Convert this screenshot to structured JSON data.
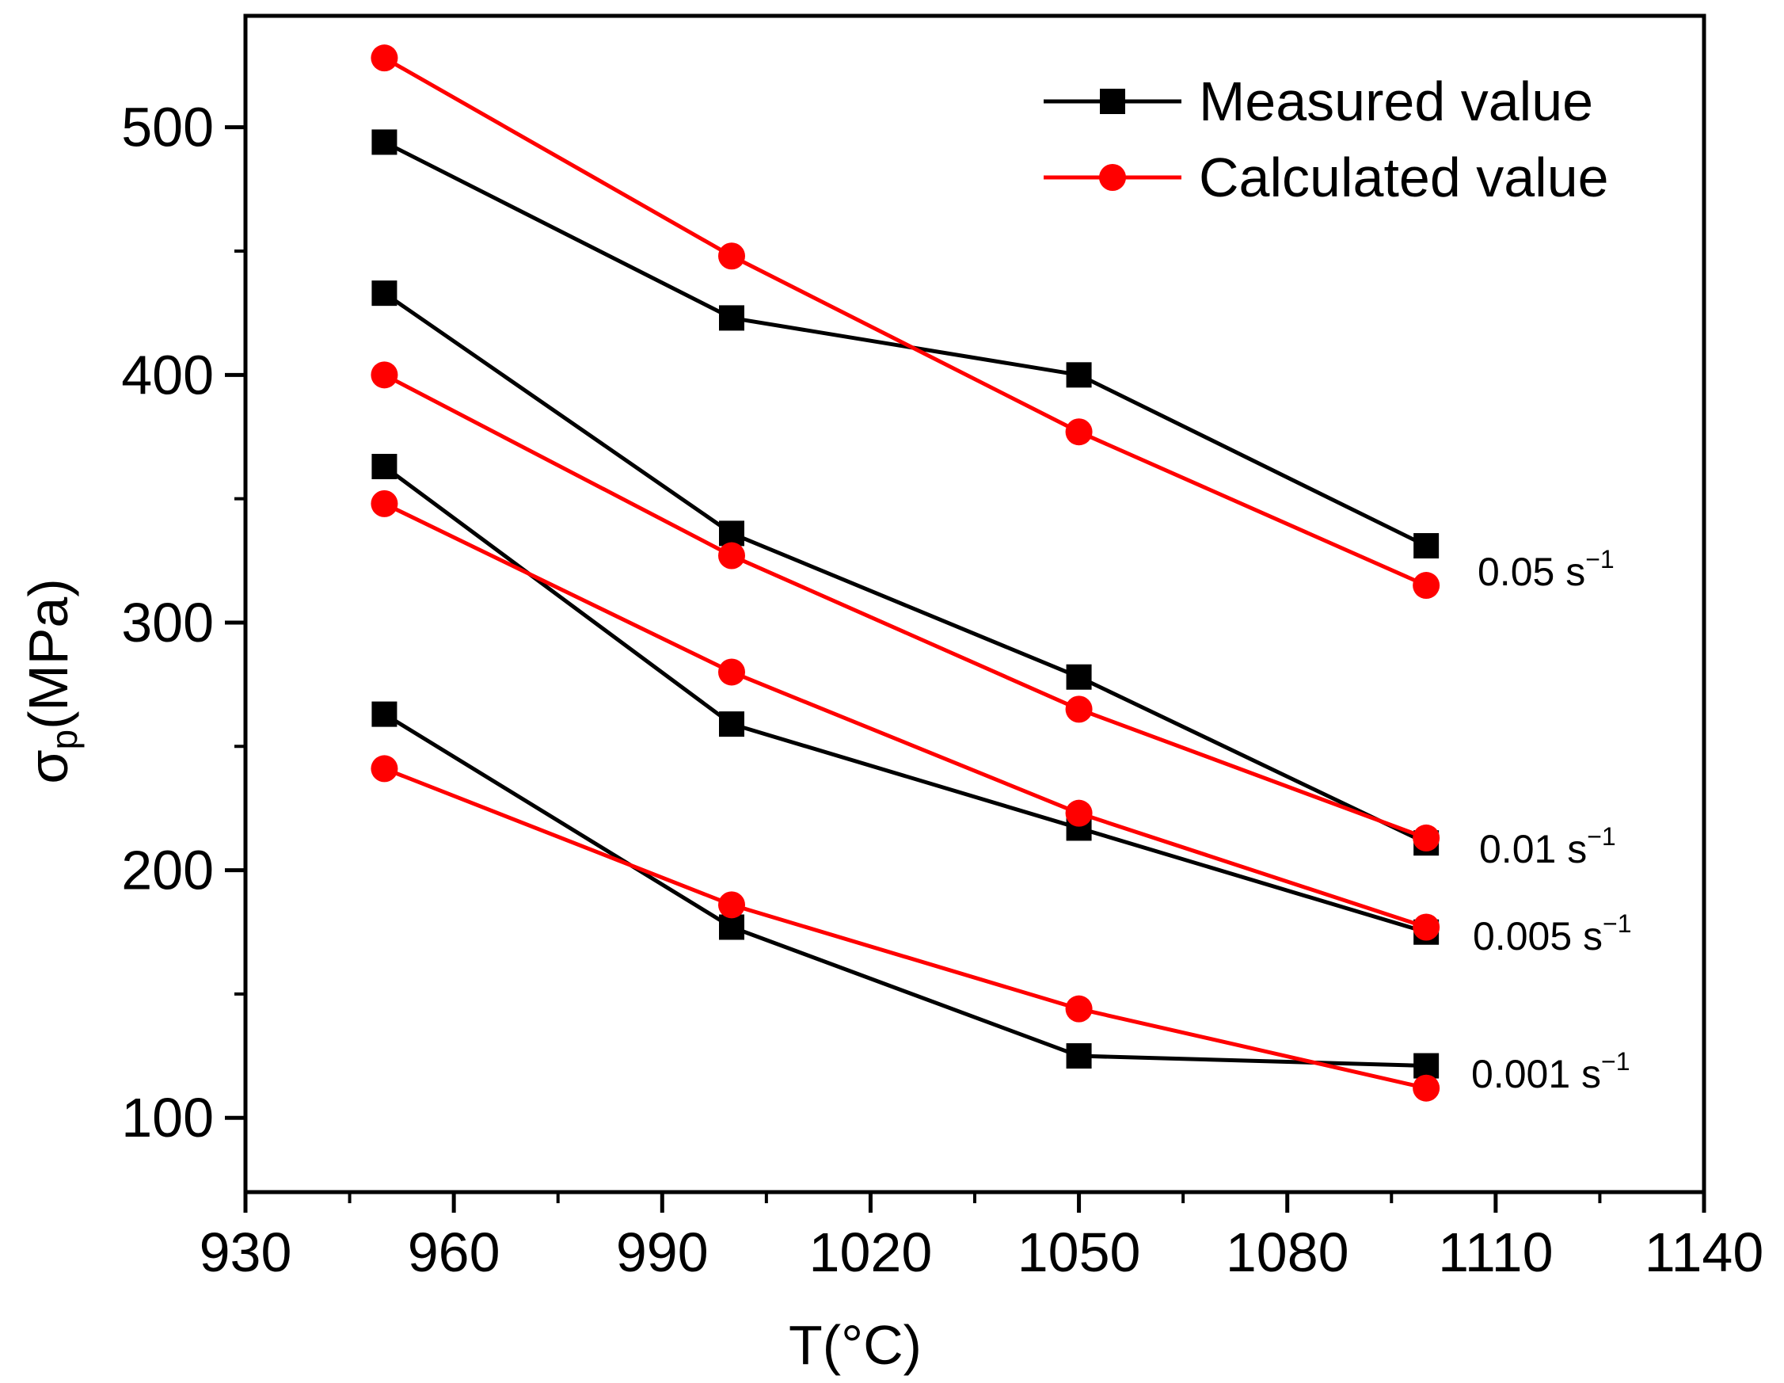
{
  "chart_data": {
    "type": "line",
    "xlabel": "T(°C)",
    "ylabel_main": "σ",
    "ylabel_sub": "p",
    "ylabel_rest": "(MPa)",
    "xlim": [
      930,
      1140
    ],
    "ylim": [
      70,
      545
    ],
    "x_ticks": [
      930,
      960,
      990,
      1020,
      1050,
      1080,
      1110,
      1140
    ],
    "x_minor_ticks": [
      945,
      975,
      1005,
      1035,
      1065,
      1095,
      1125
    ],
    "y_ticks": [
      100,
      200,
      300,
      400,
      500
    ],
    "y_minor_ticks": [
      150,
      250,
      350,
      450,
      550
    ],
    "x_tick_labels": [
      "930",
      "960",
      "990",
      "1020",
      "1050",
      "1080",
      "1110",
      "1140"
    ],
    "y_tick_labels": [
      "100",
      "200",
      "300",
      "400",
      "500"
    ],
    "legend": {
      "position": "top-right",
      "entries": [
        {
          "label": "Measured value",
          "color": "#000000",
          "marker": "square"
        },
        {
          "label": "Calculated value",
          "color": "#ff0000",
          "marker": "circle"
        }
      ]
    },
    "x": [
      950,
      1000,
      1050,
      1100
    ],
    "series": [
      {
        "type": "measured",
        "rate": "0.05",
        "color": "#000000",
        "marker": "square",
        "values": [
          494,
          423,
          400,
          331
        ]
      },
      {
        "type": "calculated",
        "rate": "0.05",
        "color": "#ff0000",
        "marker": "circle",
        "values": [
          528,
          448,
          377,
          315
        ]
      },
      {
        "type": "measured",
        "rate": "0.01",
        "color": "#000000",
        "marker": "square",
        "values": [
          433,
          336,
          278,
          211
        ]
      },
      {
        "type": "calculated",
        "rate": "0.01",
        "color": "#ff0000",
        "marker": "circle",
        "values": [
          400,
          327,
          265,
          213
        ]
      },
      {
        "type": "measured",
        "rate": "0.005",
        "color": "#000000",
        "marker": "square",
        "values": [
          363,
          259,
          217,
          175
        ]
      },
      {
        "type": "calculated",
        "rate": "0.005",
        "color": "#ff0000",
        "marker": "circle",
        "values": [
          348,
          280,
          223,
          177
        ]
      },
      {
        "type": "measured",
        "rate": "0.001",
        "color": "#000000",
        "marker": "square",
        "values": [
          263,
          177,
          125,
          121
        ]
      },
      {
        "type": "calculated",
        "rate": "0.001",
        "color": "#ff0000",
        "marker": "circle",
        "values": [
          241,
          186,
          144,
          112
        ]
      }
    ],
    "annotations": [
      {
        "text": "0.05 s",
        "sup": "−1"
      },
      {
        "text": "0.01 s",
        "sup": "−1"
      },
      {
        "text": "0.005 s",
        "sup": "−1"
      },
      {
        "text": "0.001 s",
        "sup": "−1"
      }
    ]
  }
}
